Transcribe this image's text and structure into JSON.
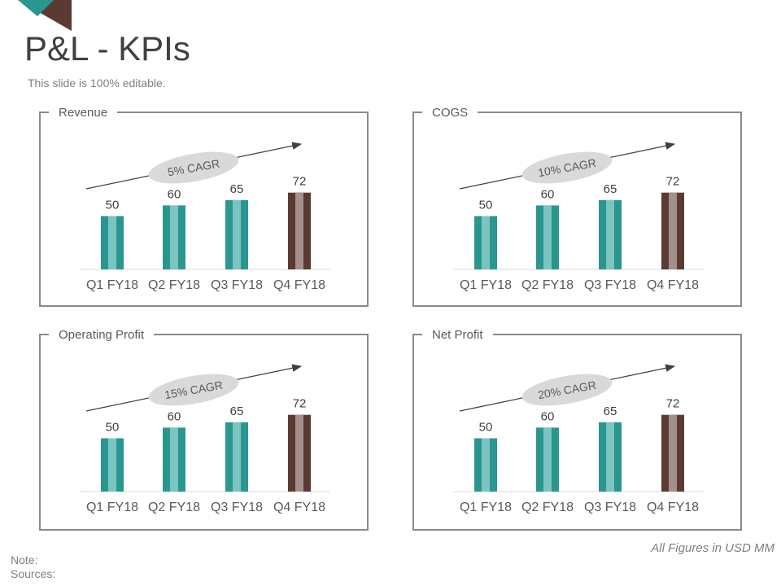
{
  "header": {
    "title": "P&L - KPIs",
    "subtitle": "This slide is 100% editable."
  },
  "footer": {
    "note": "Note:",
    "sources": "Sources:",
    "units": "All Figures in USD MM"
  },
  "colors": {
    "teal": "#2a9690",
    "teal_light": "#7cc4bf",
    "brown": "#5b3a32",
    "brown_light": "#a3908b",
    "cagr_bg": "#d9d9d9",
    "corner_teal": "#2a9690",
    "corner_brown": "#5b3a32"
  },
  "chart_data": [
    {
      "type": "bar",
      "title": "Revenue",
      "categories": [
        "Q1 FY18",
        "Q2 FY18",
        "Q3 FY18",
        "Q4 FY18"
      ],
      "values": [
        50,
        60,
        65,
        72
      ],
      "cagr_label": "5% CAGR",
      "ylim": [
        0,
        100
      ]
    },
    {
      "type": "bar",
      "title": "COGS",
      "categories": [
        "Q1 FY18",
        "Q2 FY18",
        "Q3 FY18",
        "Q4 FY18"
      ],
      "values": [
        50,
        60,
        65,
        72
      ],
      "cagr_label": "10% CAGR",
      "ylim": [
        0,
        100
      ]
    },
    {
      "type": "bar",
      "title": "Operating Profit",
      "categories": [
        "Q1 FY18",
        "Q2 FY18",
        "Q3 FY18",
        "Q4 FY18"
      ],
      "values": [
        50,
        60,
        65,
        72
      ],
      "cagr_label": "15% CAGR",
      "ylim": [
        0,
        100
      ]
    },
    {
      "type": "bar",
      "title": "Net Profit",
      "categories": [
        "Q1 FY18",
        "Q2 FY18",
        "Q3 FY18",
        "Q4 FY18"
      ],
      "values": [
        50,
        60,
        65,
        72
      ],
      "cagr_label": "20% CAGR",
      "ylim": [
        0,
        100
      ]
    }
  ]
}
